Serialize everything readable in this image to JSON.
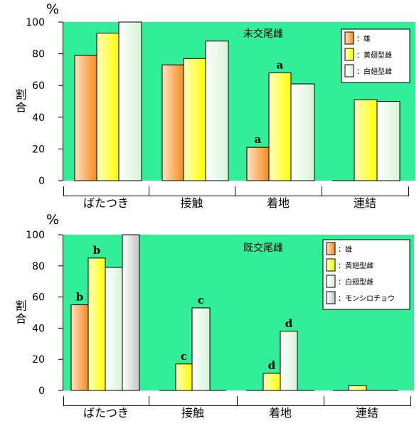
{
  "chart_data": [
    {
      "type": "bar",
      "title": "未交尾雌",
      "ylabel": "割合",
      "yunit": "%",
      "ylim": [
        0,
        100
      ],
      "yticks": [
        0,
        20,
        40,
        60,
        80,
        100
      ],
      "grid": false,
      "legend_position": "top-right",
      "categories": [
        "ばたつき",
        "接触",
        "着地",
        "連結"
      ],
      "series": [
        {
          "name": "：雄",
          "color": "#f7a447",
          "values": [
            79,
            73,
            21,
            0
          ]
        },
        {
          "name": "：黄翅型雌",
          "color": "#ffff2a",
          "values": [
            93,
            77,
            68,
            51
          ]
        },
        {
          "name": "：白翅型雌",
          "color": "#e9fbe9",
          "values": [
            100,
            88,
            61,
            50
          ]
        }
      ],
      "annotations": [
        {
          "text": "a",
          "category": "着地",
          "series": "：雄"
        },
        {
          "text": "a",
          "category": "着地",
          "series": "：黄翅型雌"
        }
      ]
    },
    {
      "type": "bar",
      "title": "既交尾雌",
      "ylabel": "割合",
      "yunit": "%",
      "ylim": [
        0,
        100
      ],
      "yticks": [
        0,
        20,
        40,
        60,
        80,
        100
      ],
      "grid": false,
      "legend_position": "top-right",
      "categories": [
        "ばたつき",
        "接触",
        "着地",
        "連結"
      ],
      "series": [
        {
          "name": "：雄",
          "color": "#f7a447",
          "values": [
            55,
            0,
            0,
            0
          ]
        },
        {
          "name": "：黄翅型雌",
          "color": "#ffff2a",
          "values": [
            85,
            17,
            11,
            3
          ]
        },
        {
          "name": "：白翅型雌",
          "color": "#e9fbe9",
          "values": [
            79,
            53,
            38,
            0
          ]
        },
        {
          "name": "：モンシロチョウ",
          "color": "#dadada",
          "values": [
            100,
            0,
            0,
            0
          ]
        }
      ],
      "annotations": [
        {
          "text": "b",
          "category": "ばたつき",
          "series": "：雄"
        },
        {
          "text": "b",
          "category": "ばたつき",
          "series": "：黄翅型雌"
        },
        {
          "text": "c",
          "category": "接触",
          "series": "：黄翅型雌"
        },
        {
          "text": "c",
          "category": "接触",
          "series": "：白翅型雌"
        },
        {
          "text": "d",
          "category": "着地",
          "series": "：黄翅型雌"
        },
        {
          "text": "d",
          "category": "着地",
          "series": "：白翅型雌"
        }
      ]
    }
  ]
}
